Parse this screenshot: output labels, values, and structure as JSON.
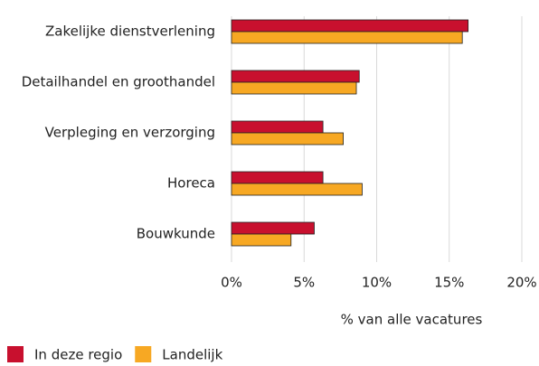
{
  "chart_data": {
    "type": "hbar",
    "categories": [
      "Zakelijke dienstverlening",
      "Detailhandel en groothandel",
      "Verpleging en verzorging",
      "Horeca",
      "Bouwkunde"
    ],
    "series": [
      {
        "name": "In deze regio",
        "color": "#c8102e",
        "values": [
          16.3,
          8.8,
          6.3,
          6.3,
          5.7
        ]
      },
      {
        "name": "Landelijk",
        "color": "#f7a823",
        "values": [
          15.9,
          8.6,
          7.7,
          9.0,
          4.1
        ]
      }
    ],
    "xlabel": "% van alle vacatures",
    "xlim": [
      0,
      20
    ],
    "xticks": [
      {
        "value": 0,
        "label": "0%"
      },
      {
        "value": 5,
        "label": "5%"
      },
      {
        "value": 10,
        "label": "10%"
      },
      {
        "value": 15,
        "label": "15%"
      },
      {
        "value": 20,
        "label": "20%"
      }
    ],
    "grid": true,
    "legend": "bottom-left"
  }
}
